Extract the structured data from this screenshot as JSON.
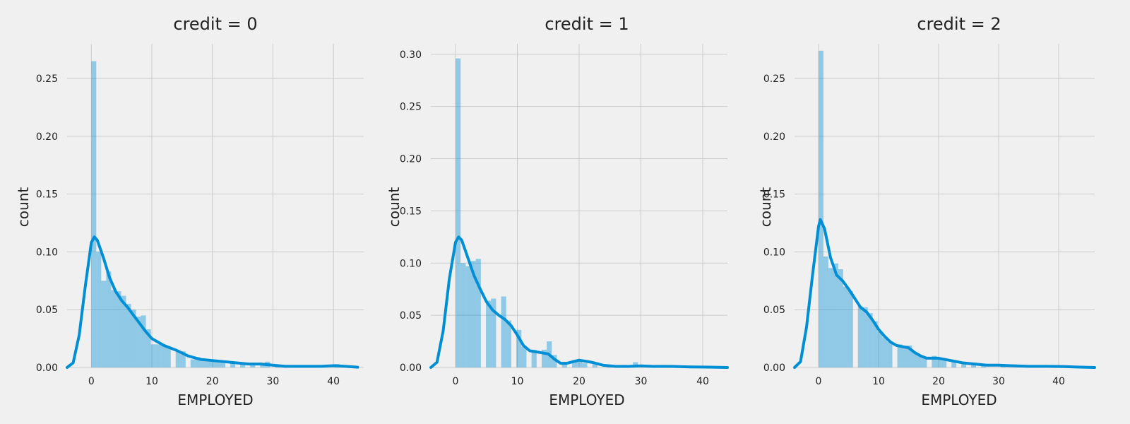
{
  "colors": {
    "background": "#f0f0f0",
    "series": "#008fd5",
    "grid": "#cbcbcb",
    "text": "#222222"
  },
  "chart_data": [
    {
      "type": "bar",
      "title": "credit = 0",
      "xlabel": "EMPLOYED",
      "ylabel": "count",
      "xlim": [
        -4,
        45
      ],
      "ylim": [
        0,
        0.28
      ],
      "xticks": [
        0,
        10,
        20,
        30,
        40
      ],
      "yticks": [
        0.0,
        0.05,
        0.1,
        0.15,
        0.2,
        0.25
      ],
      "ytick_labels": [
        "0.00",
        "0.05",
        "0.10",
        "0.15",
        "0.20",
        "0.25"
      ],
      "grid": true,
      "bin_width": 0.82,
      "bins": [
        [
          0,
          0.265
        ],
        [
          0.82,
          0.1
        ],
        [
          1.64,
          0.075
        ],
        [
          2.46,
          0.083
        ],
        [
          3.28,
          0.067
        ],
        [
          4.1,
          0.066
        ],
        [
          4.92,
          0.062
        ],
        [
          5.74,
          0.055
        ],
        [
          6.56,
          0.05
        ],
        [
          7.38,
          0.044
        ],
        [
          8.2,
          0.045
        ],
        [
          9.02,
          0.033
        ],
        [
          9.84,
          0.02
        ],
        [
          10.66,
          0.02
        ],
        [
          11.48,
          0.02
        ],
        [
          12.3,
          0.018
        ],
        [
          13.94,
          0.014
        ],
        [
          14.76,
          0.014
        ],
        [
          16.4,
          0.007
        ],
        [
          17.22,
          0.009
        ],
        [
          18.04,
          0.006
        ],
        [
          18.86,
          0.007
        ],
        [
          19.68,
          0.005
        ],
        [
          20.5,
          0.006
        ],
        [
          21.32,
          0.005
        ],
        [
          22.96,
          0.004
        ],
        [
          24.6,
          0.003
        ],
        [
          26.24,
          0.003
        ],
        [
          27.88,
          0.004
        ],
        [
          28.7,
          0.005
        ],
        [
          30.34,
          0.002
        ],
        [
          32.8,
          0.001
        ],
        [
          35.26,
          0.001
        ],
        [
          40.18,
          0.003
        ]
      ],
      "kde": [
        [
          -4,
          0.0
        ],
        [
          -3,
          0.004
        ],
        [
          -2,
          0.028
        ],
        [
          -1,
          0.07
        ],
        [
          0,
          0.108
        ],
        [
          0.5,
          0.113
        ],
        [
          1,
          0.11
        ],
        [
          2,
          0.095
        ],
        [
          3,
          0.078
        ],
        [
          4,
          0.066
        ],
        [
          5,
          0.058
        ],
        [
          6,
          0.052
        ],
        [
          7,
          0.045
        ],
        [
          8,
          0.038
        ],
        [
          9,
          0.031
        ],
        [
          10,
          0.025
        ],
        [
          12,
          0.019
        ],
        [
          14,
          0.015
        ],
        [
          16,
          0.01
        ],
        [
          18,
          0.007
        ],
        [
          20,
          0.006
        ],
        [
          22,
          0.005
        ],
        [
          24,
          0.004
        ],
        [
          26,
          0.003
        ],
        [
          28,
          0.003
        ],
        [
          30,
          0.002
        ],
        [
          32,
          0.001
        ],
        [
          35,
          0.001
        ],
        [
          38,
          0.001
        ],
        [
          40,
          0.0015
        ],
        [
          42,
          0.001
        ],
        [
          44,
          0.0002
        ]
      ]
    },
    {
      "type": "bar",
      "title": "credit = 1",
      "xlabel": "EMPLOYED",
      "ylabel": "count",
      "xlim": [
        -4,
        44
      ],
      "ylim": [
        0,
        0.31
      ],
      "xticks": [
        0,
        10,
        20,
        30,
        40
      ],
      "yticks": [
        0.0,
        0.05,
        0.1,
        0.15,
        0.2,
        0.25,
        0.3
      ],
      "ytick_labels": [
        "0.00",
        "0.05",
        "0.10",
        "0.15",
        "0.20",
        "0.25",
        "0.30"
      ],
      "grid": true,
      "bin_width": 0.82,
      "bins": [
        [
          0,
          0.296
        ],
        [
          0.82,
          0.1
        ],
        [
          1.64,
          0.097
        ],
        [
          2.46,
          0.102
        ],
        [
          3.28,
          0.104
        ],
        [
          4.92,
          0.064
        ],
        [
          5.74,
          0.066
        ],
        [
          7.38,
          0.068
        ],
        [
          8.2,
          0.045
        ],
        [
          9.84,
          0.036
        ],
        [
          10.66,
          0.02
        ],
        [
          12.3,
          0.017
        ],
        [
          13.94,
          0.017
        ],
        [
          14.76,
          0.025
        ],
        [
          15.58,
          0.012
        ],
        [
          17.22,
          0.004
        ],
        [
          18.86,
          0.007
        ],
        [
          19.68,
          0.007
        ],
        [
          20.5,
          0.004
        ],
        [
          22.14,
          0.003
        ],
        [
          24.6,
          0.002
        ],
        [
          27.06,
          0.002
        ],
        [
          28.7,
          0.005
        ],
        [
          30.34,
          0.002
        ],
        [
          32.8,
          0.001
        ]
      ],
      "kde": [
        [
          -4,
          0.0
        ],
        [
          -3,
          0.005
        ],
        [
          -2,
          0.035
        ],
        [
          -1,
          0.085
        ],
        [
          0,
          0.12
        ],
        [
          0.5,
          0.125
        ],
        [
          1,
          0.122
        ],
        [
          2,
          0.105
        ],
        [
          3,
          0.088
        ],
        [
          4,
          0.075
        ],
        [
          5,
          0.063
        ],
        [
          6,
          0.055
        ],
        [
          7,
          0.05
        ],
        [
          8,
          0.046
        ],
        [
          9,
          0.04
        ],
        [
          10,
          0.031
        ],
        [
          11,
          0.021
        ],
        [
          12,
          0.016
        ],
        [
          13,
          0.015
        ],
        [
          14,
          0.014
        ],
        [
          15,
          0.013
        ],
        [
          16,
          0.008
        ],
        [
          17,
          0.004
        ],
        [
          18,
          0.004
        ],
        [
          20,
          0.007
        ],
        [
          22,
          0.005
        ],
        [
          24,
          0.002
        ],
        [
          26,
          0.001
        ],
        [
          28,
          0.001
        ],
        [
          30,
          0.0015
        ],
        [
          32,
          0.001
        ],
        [
          35,
          0.001
        ],
        [
          38,
          0.0005
        ],
        [
          41,
          0.0003
        ],
        [
          44,
          0.0
        ]
      ]
    },
    {
      "type": "bar",
      "title": "credit = 2",
      "xlabel": "EMPLOYED",
      "ylabel": "count",
      "xlim": [
        -4,
        46
      ],
      "ylim": [
        0,
        0.28
      ],
      "xticks": [
        0,
        10,
        20,
        30,
        40
      ],
      "yticks": [
        0.0,
        0.05,
        0.1,
        0.15,
        0.2,
        0.25
      ],
      "ytick_labels": [
        "0.00",
        "0.05",
        "0.10",
        "0.15",
        "0.20",
        "0.25"
      ],
      "grid": true,
      "bin_width": 0.82,
      "bins": [
        [
          0,
          0.274
        ],
        [
          0.82,
          0.096
        ],
        [
          1.64,
          0.086
        ],
        [
          2.46,
          0.09
        ],
        [
          3.28,
          0.085
        ],
        [
          4.1,
          0.07
        ],
        [
          4.92,
          0.066
        ],
        [
          6.56,
          0.053
        ],
        [
          7.38,
          0.052
        ],
        [
          8.2,
          0.047
        ],
        [
          9.02,
          0.04
        ],
        [
          9.84,
          0.031
        ],
        [
          10.66,
          0.026
        ],
        [
          11.48,
          0.022
        ],
        [
          13.12,
          0.02
        ],
        [
          13.94,
          0.019
        ],
        [
          14.76,
          0.019
        ],
        [
          15.58,
          0.013
        ],
        [
          16.4,
          0.01
        ],
        [
          17.22,
          0.009
        ],
        [
          18.86,
          0.01
        ],
        [
          19.68,
          0.008
        ],
        [
          20.5,
          0.006
        ],
        [
          22.14,
          0.005
        ],
        [
          23.78,
          0.004
        ],
        [
          25.42,
          0.002
        ],
        [
          27.06,
          0.002
        ],
        [
          30.34,
          0.002
        ],
        [
          32.8,
          0.001
        ],
        [
          36.08,
          0.001
        ]
      ],
      "kde": [
        [
          -4,
          0.0
        ],
        [
          -3,
          0.005
        ],
        [
          -2,
          0.035
        ],
        [
          -1,
          0.08
        ],
        [
          0,
          0.122
        ],
        [
          0.3,
          0.128
        ],
        [
          1,
          0.12
        ],
        [
          2,
          0.095
        ],
        [
          3,
          0.08
        ],
        [
          4,
          0.075
        ],
        [
          5,
          0.068
        ],
        [
          6,
          0.06
        ],
        [
          7,
          0.052
        ],
        [
          8,
          0.048
        ],
        [
          9,
          0.041
        ],
        [
          10,
          0.033
        ],
        [
          11,
          0.027
        ],
        [
          12,
          0.022
        ],
        [
          13,
          0.019
        ],
        [
          14,
          0.018
        ],
        [
          15,
          0.017
        ],
        [
          16,
          0.013
        ],
        [
          17,
          0.01
        ],
        [
          18,
          0.008
        ],
        [
          20,
          0.008
        ],
        [
          22,
          0.006
        ],
        [
          24,
          0.004
        ],
        [
          26,
          0.003
        ],
        [
          28,
          0.002
        ],
        [
          30,
          0.002
        ],
        [
          32,
          0.0015
        ],
        [
          35,
          0.001
        ],
        [
          38,
          0.001
        ],
        [
          41,
          0.0008
        ],
        [
          43,
          0.0004
        ],
        [
          46,
          0.0
        ]
      ]
    }
  ]
}
